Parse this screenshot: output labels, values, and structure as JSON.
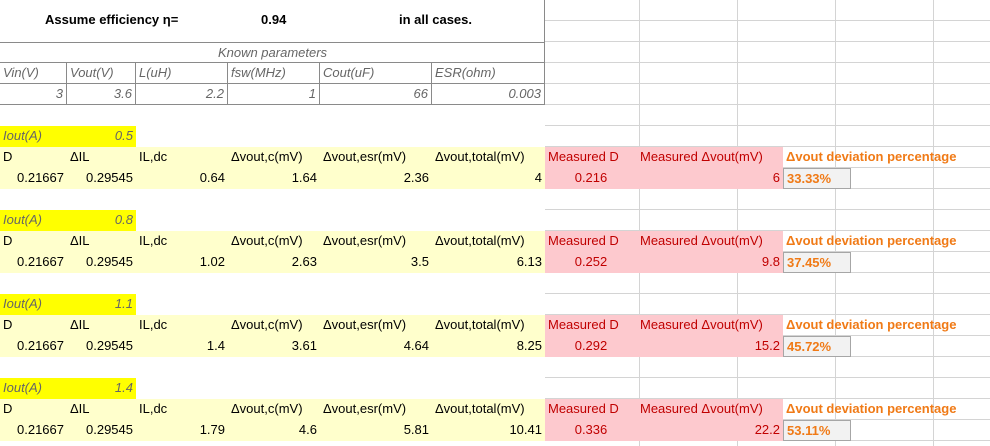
{
  "header": {
    "efficiency_label": "Assume efficiency η=",
    "efficiency_value": "0.94",
    "note": "in all cases."
  },
  "known": {
    "title": "Known parameters",
    "headers": [
      "Vin(V)",
      "Vout(V)",
      "L(uH)",
      "fsw(MHz)",
      "Cout(uF)",
      "ESR(ohm)"
    ],
    "values": [
      "3",
      "3.6",
      "2.2",
      "1",
      "66",
      "0.003"
    ]
  },
  "columns": [
    "D",
    "ΔIL",
    "IL,dc",
    "Δvout,c(mV)",
    "Δvout,esr(mV)",
    "Δvout,total(mV)",
    "Measured D",
    "Measured  Δvout(mV)",
    "Δvout deviation percentage"
  ],
  "iout_label": "Iout(A)",
  "cases": [
    {
      "iout": "0.5",
      "d": "0.21667",
      "dil": "0.29545",
      "ildc": "0.64",
      "dvc": "1.64",
      "dvesr": "2.36",
      "dvtotal": "4",
      "md": "0.216",
      "mdv": "6",
      "dev": "33.33%"
    },
    {
      "iout": "0.8",
      "d": "0.21667",
      "dil": "0.29545",
      "ildc": "1.02",
      "dvc": "2.63",
      "dvesr": "3.5",
      "dvtotal": "6.13",
      "md": "0.252",
      "mdv": "9.8",
      "dev": "37.45%"
    },
    {
      "iout": "1.1",
      "d": "0.21667",
      "dil": "0.29545",
      "ildc": "1.4",
      "dvc": "3.61",
      "dvesr": "4.64",
      "dvtotal": "8.25",
      "md": "0.292",
      "mdv": "15.2",
      "dev": "45.72%"
    },
    {
      "iout": "1.4",
      "d": "0.21667",
      "dil": "0.29545",
      "ildc": "1.79",
      "dvc": "4.6",
      "dvesr": "5.81",
      "dvtotal": "10.41",
      "md": "0.336",
      "mdv": "22.2",
      "dev": "53.11%"
    }
  ],
  "colors": {
    "yellow": "#ffff00",
    "pale_yellow": "#ffffcc",
    "pink": "#fdc9ce",
    "orange": "#f07a16"
  }
}
